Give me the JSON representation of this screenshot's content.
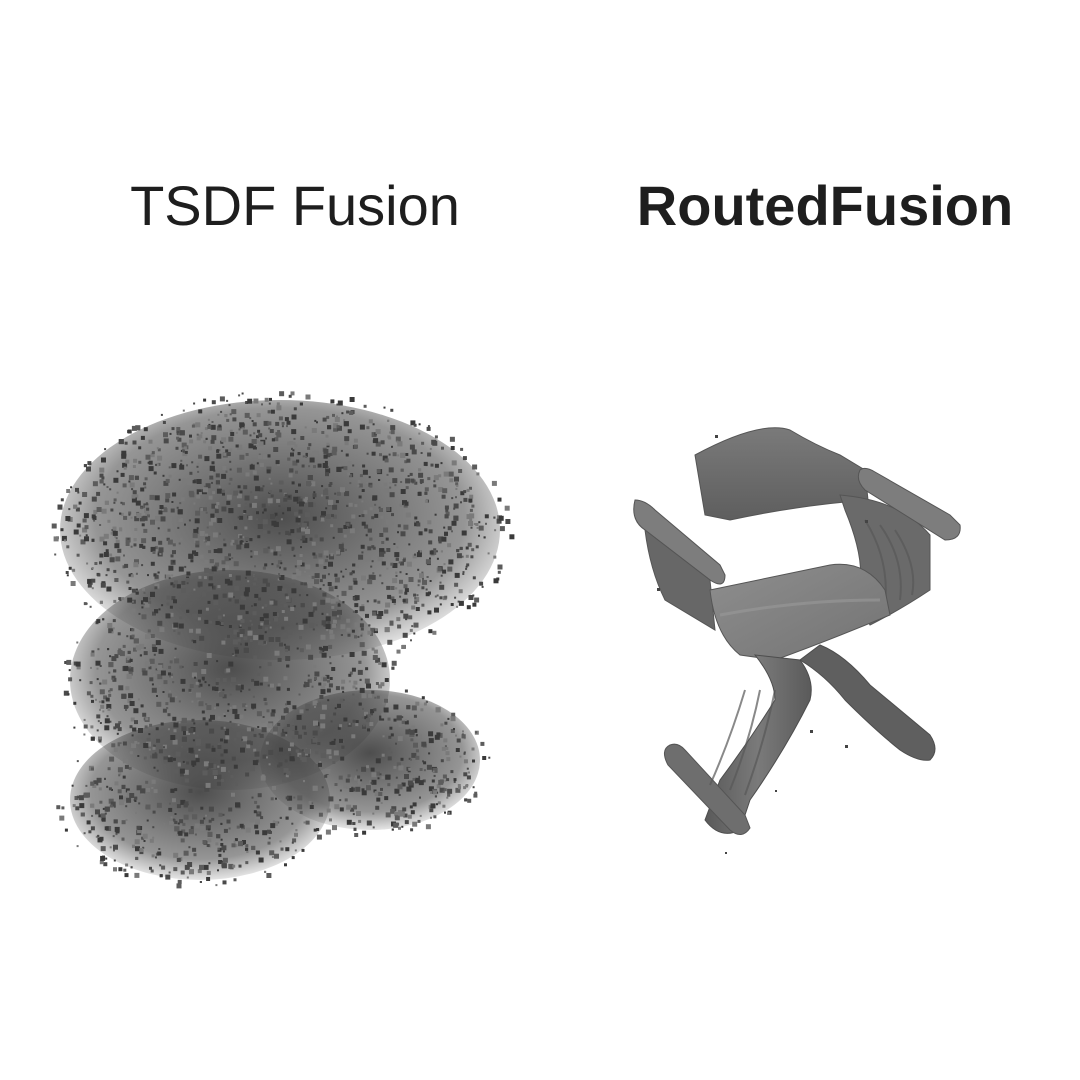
{
  "labels": {
    "left": "TSDF Fusion",
    "right": "RoutedFusion"
  },
  "colors": {
    "background": "#ffffff",
    "text": "#1e1e1e",
    "noise_dark": "#3a3a3a",
    "noise_mid": "#5c5c5c",
    "noise_light": "#7a7a7a",
    "chair_base": "#6f6f6f",
    "chair_light": "#8c8c8c",
    "chair_dark": "#4a4a4a"
  }
}
